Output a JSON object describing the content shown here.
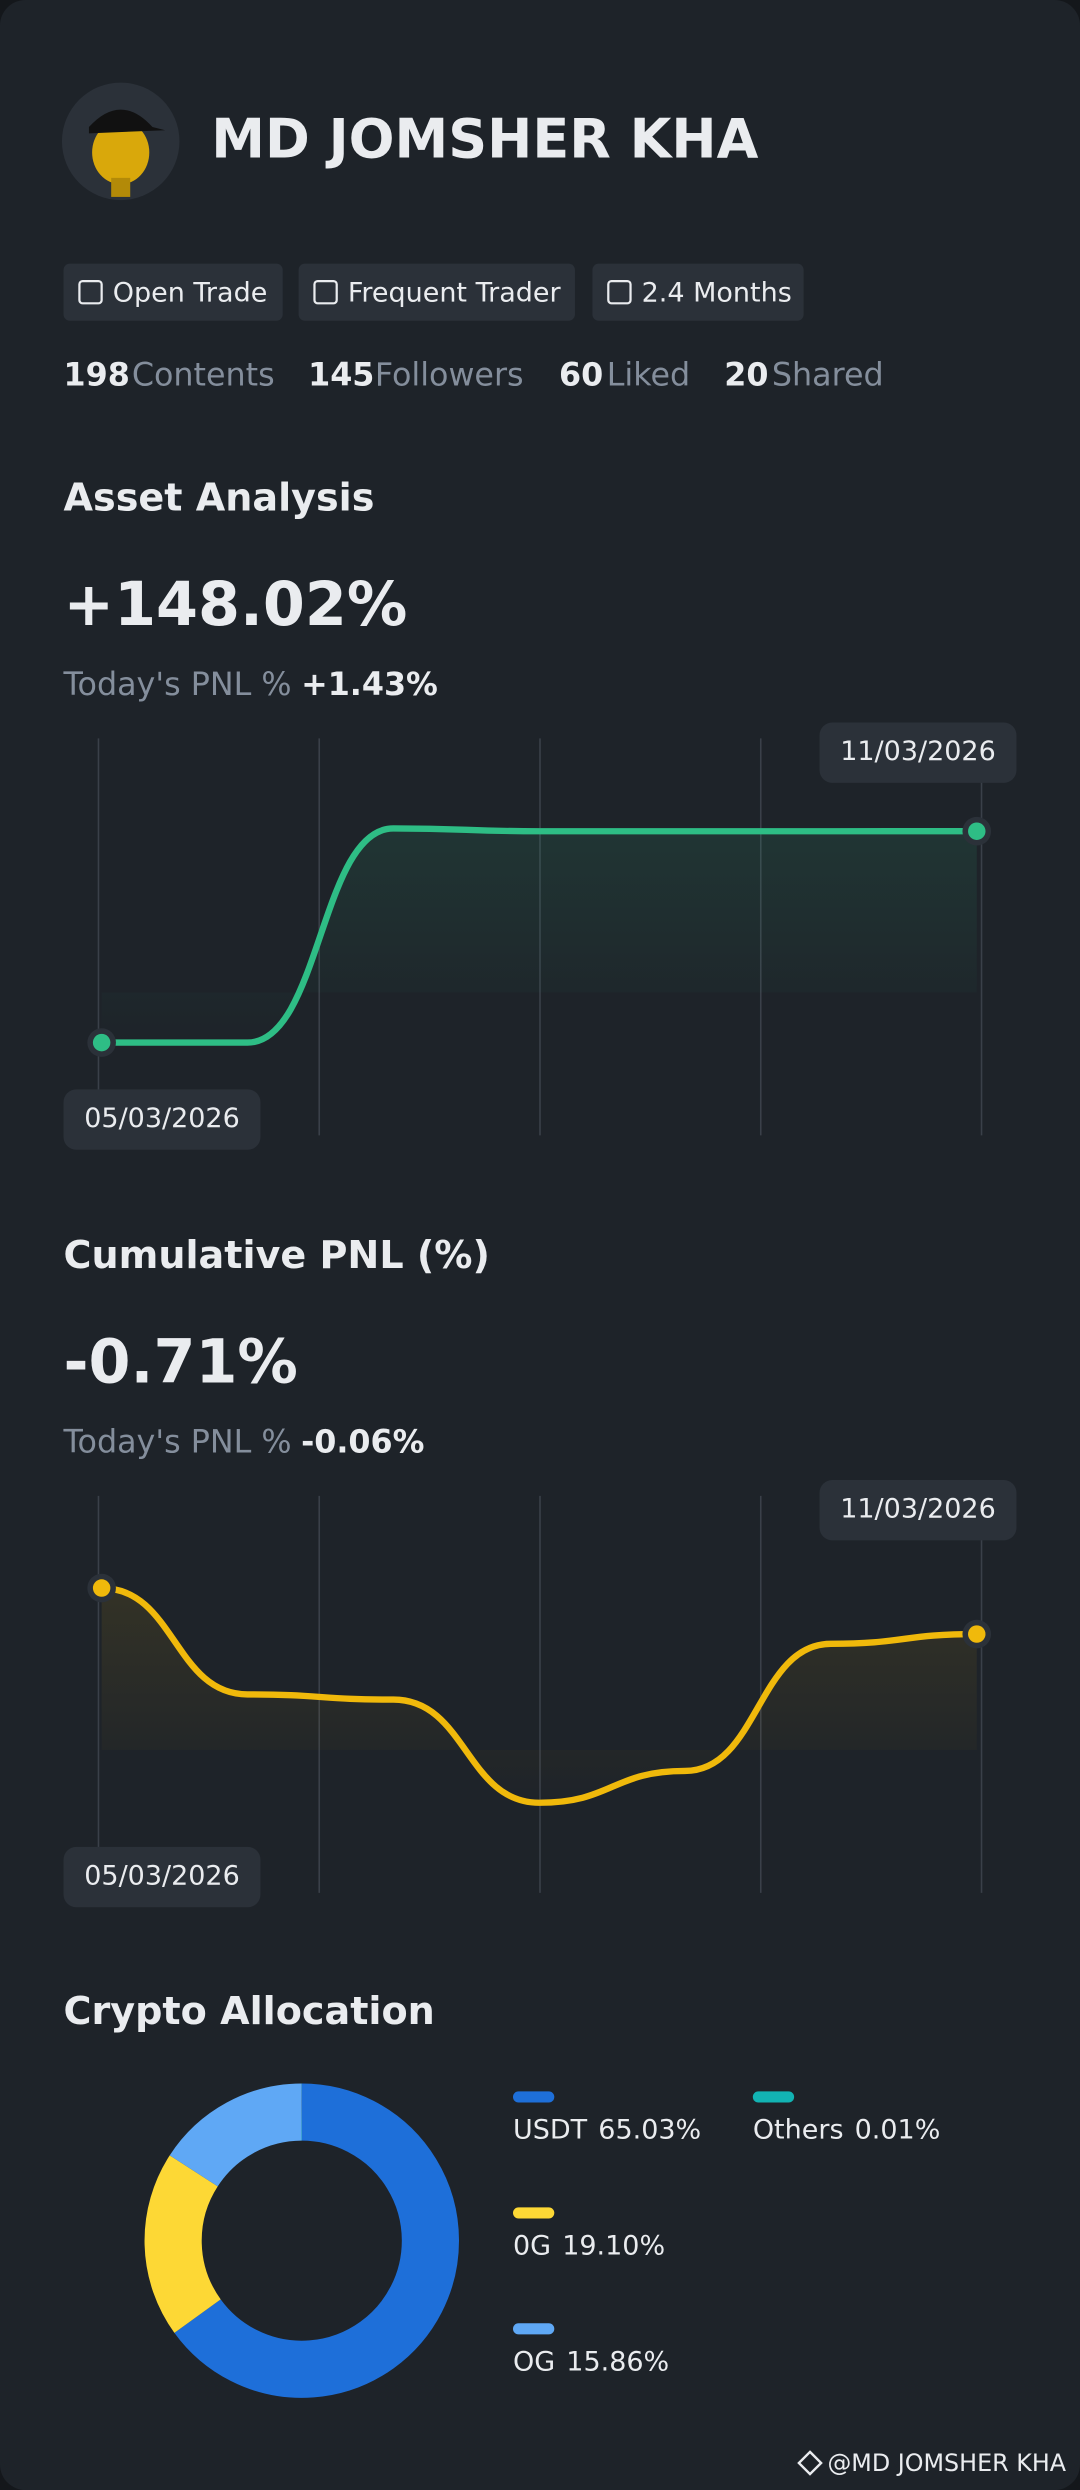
{
  "profile": {
    "name": "MD  JOMSHER  KHA",
    "badges": [
      "Open Trade",
      "Frequent Trader",
      "2.4 Months"
    ],
    "stats": [
      {
        "value": "198",
        "label": "Contents"
      },
      {
        "value": "145",
        "label": "Followers"
      },
      {
        "value": "60",
        "label": "Liked"
      },
      {
        "value": "20",
        "label": "Shared"
      }
    ]
  },
  "chart_data": [
    {
      "type": "line",
      "title": "Asset Analysis",
      "headline": "+148.02%",
      "pnl_label": "Today's PNL %",
      "pnl_value": "+1.43%",
      "categories": [
        "05/03/2026",
        null,
        null,
        null,
        null,
        null,
        "11/03/2026"
      ],
      "series": [
        {
          "color": "#2ebd85",
          "values": [
            0,
            0,
            150,
            148,
            148,
            148,
            148.02
          ]
        }
      ],
      "ylim": [
        -65,
        213
      ],
      "headline_color": "#2ebd85"
    },
    {
      "type": "line",
      "title": "Cumulative PNL (%)",
      "headline": "-0.71%",
      "pnl_label": "Today's PNL %",
      "pnl_value": "-0.06%",
      "categories": [
        "05/03/2026",
        null,
        null,
        null,
        null,
        null,
        "11/03/2026"
      ],
      "series": [
        {
          "color": "#f0b90b",
          "values": [
            0,
            -1.64,
            -1.72,
            -3.31,
            -2.82,
            -0.86,
            -0.71
          ]
        }
      ],
      "ylim": [
        -4.7,
        1.42
      ],
      "headline_color": "#f6465d"
    },
    {
      "type": "donut",
      "title": "Crypto Allocation",
      "categories": [
        "USDT",
        "0G",
        "OG",
        "Others"
      ],
      "values": [
        65.03,
        19.1,
        15.86,
        0.01
      ],
      "value_labels": [
        "65.03%",
        "19.10%",
        "15.86%",
        "0.01%"
      ],
      "colors": [
        "#1e6fd9",
        "#fdd835",
        "#5fa8f5",
        "#12b3b3"
      ]
    }
  ],
  "footer": "@MD  JOMSHER  KHA"
}
